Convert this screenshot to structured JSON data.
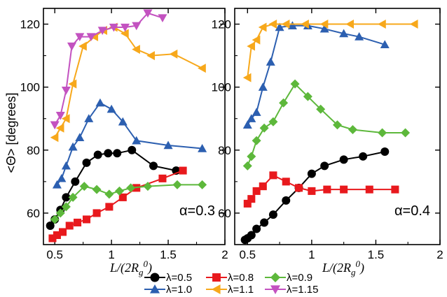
{
  "chart_data": [
    {
      "type": "line",
      "panel": "left",
      "annotation": "α=0.3",
      "xlabel": "L/(2R_g^0)",
      "ylabel": "<Θ> [degrees]",
      "xlim": [
        0.4,
        2.0
      ],
      "ylim": [
        50,
        125
      ],
      "xticks": [
        "0.5",
        "1",
        "1.5",
        "2"
      ],
      "yticks": [
        "60",
        "80",
        "100",
        "120"
      ],
      "series": [
        {
          "name": "λ=0.5",
          "color": "#000000",
          "marker": "circle",
          "x": [
            0.46,
            0.5,
            0.55,
            0.6,
            0.68,
            0.78,
            0.88,
            0.97,
            1.05,
            1.18,
            1.37,
            1.57
          ],
          "y": [
            56,
            58,
            61,
            65,
            70,
            76,
            78.5,
            79,
            79,
            80,
            75,
            73.5
          ]
        },
        {
          "name": "λ=0.8",
          "color": "#e8191d",
          "marker": "square",
          "x": [
            0.48,
            0.52,
            0.57,
            0.63,
            0.7,
            0.78,
            0.87,
            0.98,
            1.1,
            1.22,
            1.45,
            1.63
          ],
          "y": [
            52,
            53,
            54,
            56,
            57,
            58,
            60,
            62,
            65,
            68,
            71,
            73.5
          ]
        },
        {
          "name": "λ=0.9",
          "color": "#5db83b",
          "marker": "diamond",
          "x": [
            0.5,
            0.55,
            0.6,
            0.66,
            0.76,
            0.87,
            0.98,
            1.07,
            1.17,
            1.32,
            1.58,
            1.8
          ],
          "y": [
            58,
            60,
            62,
            65,
            68.5,
            67.5,
            66,
            67,
            68,
            68.5,
            69,
            69
          ]
        },
        {
          "name": "λ=1.0",
          "color": "#2c5fb0",
          "marker": "triangle-up",
          "x": [
            0.52,
            0.56,
            0.6,
            0.66,
            0.72,
            0.8,
            0.9,
            1.0,
            1.1,
            1.22,
            1.5,
            1.8
          ],
          "y": [
            69,
            71,
            75,
            81,
            84,
            90,
            95,
            93,
            89,
            83,
            81.5,
            80.5
          ]
        },
        {
          "name": "λ=1.1",
          "color": "#f7a81b",
          "marker": "triangle-left",
          "x": [
            0.5,
            0.55,
            0.6,
            0.66,
            0.75,
            0.85,
            0.93,
            1.02,
            1.12,
            1.22,
            1.35,
            1.55,
            1.8
          ],
          "y": [
            84,
            87,
            90,
            101,
            113,
            116,
            118,
            119,
            117,
            112,
            110,
            110.5,
            106
          ]
        },
        {
          "name": "λ=1.15",
          "color": "#c352c0",
          "marker": "triangle-down",
          "x": [
            0.5,
            0.55,
            0.6,
            0.65,
            0.72,
            0.82,
            0.92,
            1.02,
            1.12,
            1.22,
            1.32,
            1.45
          ],
          "y": [
            88,
            91,
            99,
            113,
            116,
            116,
            118,
            119,
            119,
            119.5,
            123.5,
            122
          ]
        }
      ]
    },
    {
      "type": "line",
      "panel": "right",
      "annotation": "α=0.4",
      "xlabel": "L/(2R_g^0)",
      "xlim": [
        0.4,
        2.0
      ],
      "ylim": [
        50,
        125
      ],
      "xticks": [
        "0.5",
        "1",
        "1.5",
        "2"
      ],
      "yticks": [
        "60",
        "80",
        "100",
        "120"
      ],
      "series": [
        {
          "name": "λ=0.5",
          "color": "#000000",
          "marker": "circle",
          "x": [
            0.48,
            0.5,
            0.53,
            0.57,
            0.63,
            0.7,
            0.8,
            0.9,
            1.0,
            1.1,
            1.25,
            1.4,
            1.57
          ],
          "y": [
            51.5,
            52,
            53,
            55,
            57,
            59.5,
            64,
            68,
            72.5,
            75,
            77,
            78,
            79.5
          ]
        },
        {
          "name": "λ=0.8",
          "color": "#e8191d",
          "marker": "square",
          "x": [
            0.5,
            0.53,
            0.57,
            0.62,
            0.7,
            0.8,
            0.9,
            1.0,
            1.12,
            1.25,
            1.45,
            1.65
          ],
          "y": [
            63,
            64.5,
            67,
            68.5,
            72,
            70,
            68,
            67,
            67.5,
            67.5,
            67.5,
            67.5
          ]
        },
        {
          "name": "λ=0.9",
          "color": "#5db83b",
          "marker": "diamond",
          "x": [
            0.5,
            0.53,
            0.57,
            0.63,
            0.7,
            0.78,
            0.87,
            0.97,
            1.07,
            1.2,
            1.32,
            1.55,
            1.73
          ],
          "y": [
            75,
            78,
            83,
            87,
            89,
            95,
            101,
            97,
            93,
            88,
            86.5,
            85.5,
            85.5
          ]
        },
        {
          "name": "λ=1.0",
          "color": "#2c5fb0",
          "marker": "triangle-up",
          "x": [
            0.5,
            0.53,
            0.57,
            0.62,
            0.68,
            0.75,
            0.85,
            0.97,
            1.1,
            1.25,
            1.37,
            1.57
          ],
          "y": [
            88,
            90,
            92,
            100,
            108,
            119,
            119.5,
            119.5,
            118.5,
            117,
            116,
            113.5
          ]
        },
        {
          "name": "λ=1.1",
          "color": "#f7a81b",
          "marker": "triangle-left",
          "x": [
            0.5,
            0.53,
            0.57,
            0.62,
            0.7,
            0.8,
            0.95,
            1.1,
            1.3,
            1.55,
            1.8
          ],
          "y": [
            103,
            113,
            115,
            119,
            120,
            120,
            120,
            120,
            120,
            120,
            120
          ]
        }
      ]
    }
  ],
  "legend": [
    {
      "label": "λ=0.5",
      "color": "#000000",
      "marker": "circle"
    },
    {
      "label": "λ=0.8",
      "color": "#e8191d",
      "marker": "square"
    },
    {
      "label": "λ=0.9",
      "color": "#5db83b",
      "marker": "diamond"
    },
    {
      "label": "λ=1.0",
      "color": "#2c5fb0",
      "marker": "triangle-up"
    },
    {
      "label": "λ=1.1",
      "color": "#f7a81b",
      "marker": "triangle-left"
    },
    {
      "label": "λ=1.15",
      "color": "#c352c0",
      "marker": "triangle-down"
    }
  ]
}
